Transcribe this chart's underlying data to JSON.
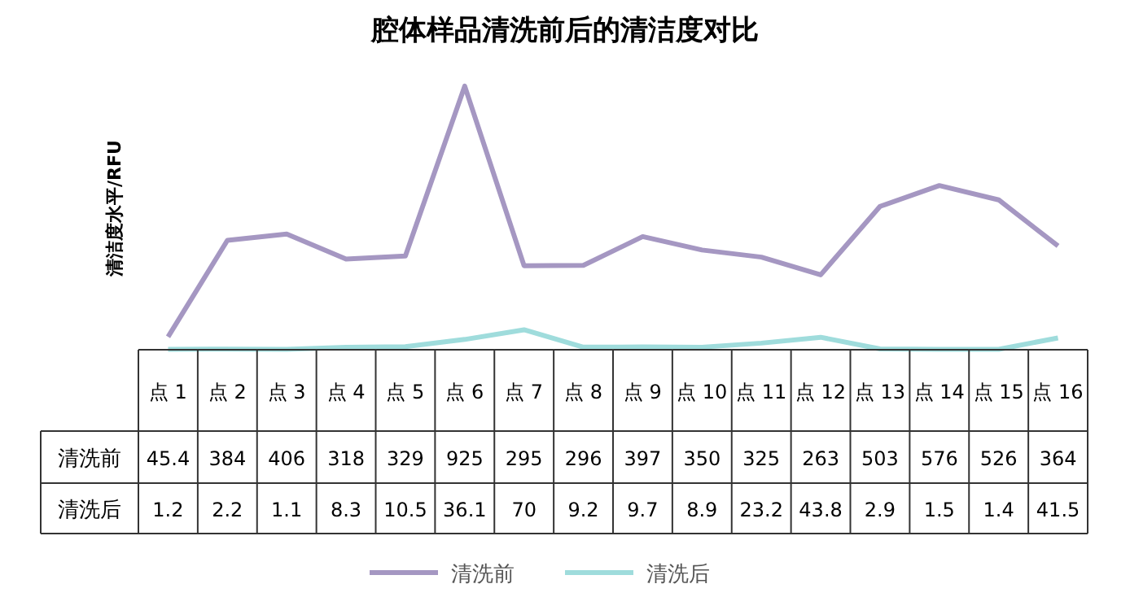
{
  "chart_data": {
    "type": "line",
    "title": "腔体样品清洗前后的清洁度对比",
    "ylabel": "清洁度水平/RFU",
    "categories": [
      "点 1",
      "点 2",
      "点 3",
      "点 4",
      "点 5",
      "点 6",
      "点 7",
      "点 8",
      "点 9",
      "点 10",
      "点 11",
      "点 12",
      "点 13",
      "点 14",
      "点 15",
      "点 16"
    ],
    "series": [
      {
        "name": "清洗前",
        "color": "#a597c2",
        "values": [
          45.4,
          384,
          406,
          318,
          329,
          925,
          295,
          296,
          397,
          350,
          325,
          263,
          503,
          576,
          526,
          364
        ]
      },
      {
        "name": "清洗后",
        "color": "#9fdcdc",
        "values": [
          1.2,
          2.2,
          1.1,
          8.3,
          10.5,
          36.1,
          70,
          9.2,
          9.7,
          8.9,
          23.2,
          43.8,
          2.9,
          1.5,
          1.4,
          41.5
        ]
      }
    ],
    "data_labels": true,
    "legend": "bottom",
    "marker": "none",
    "line_style": "solid"
  }
}
